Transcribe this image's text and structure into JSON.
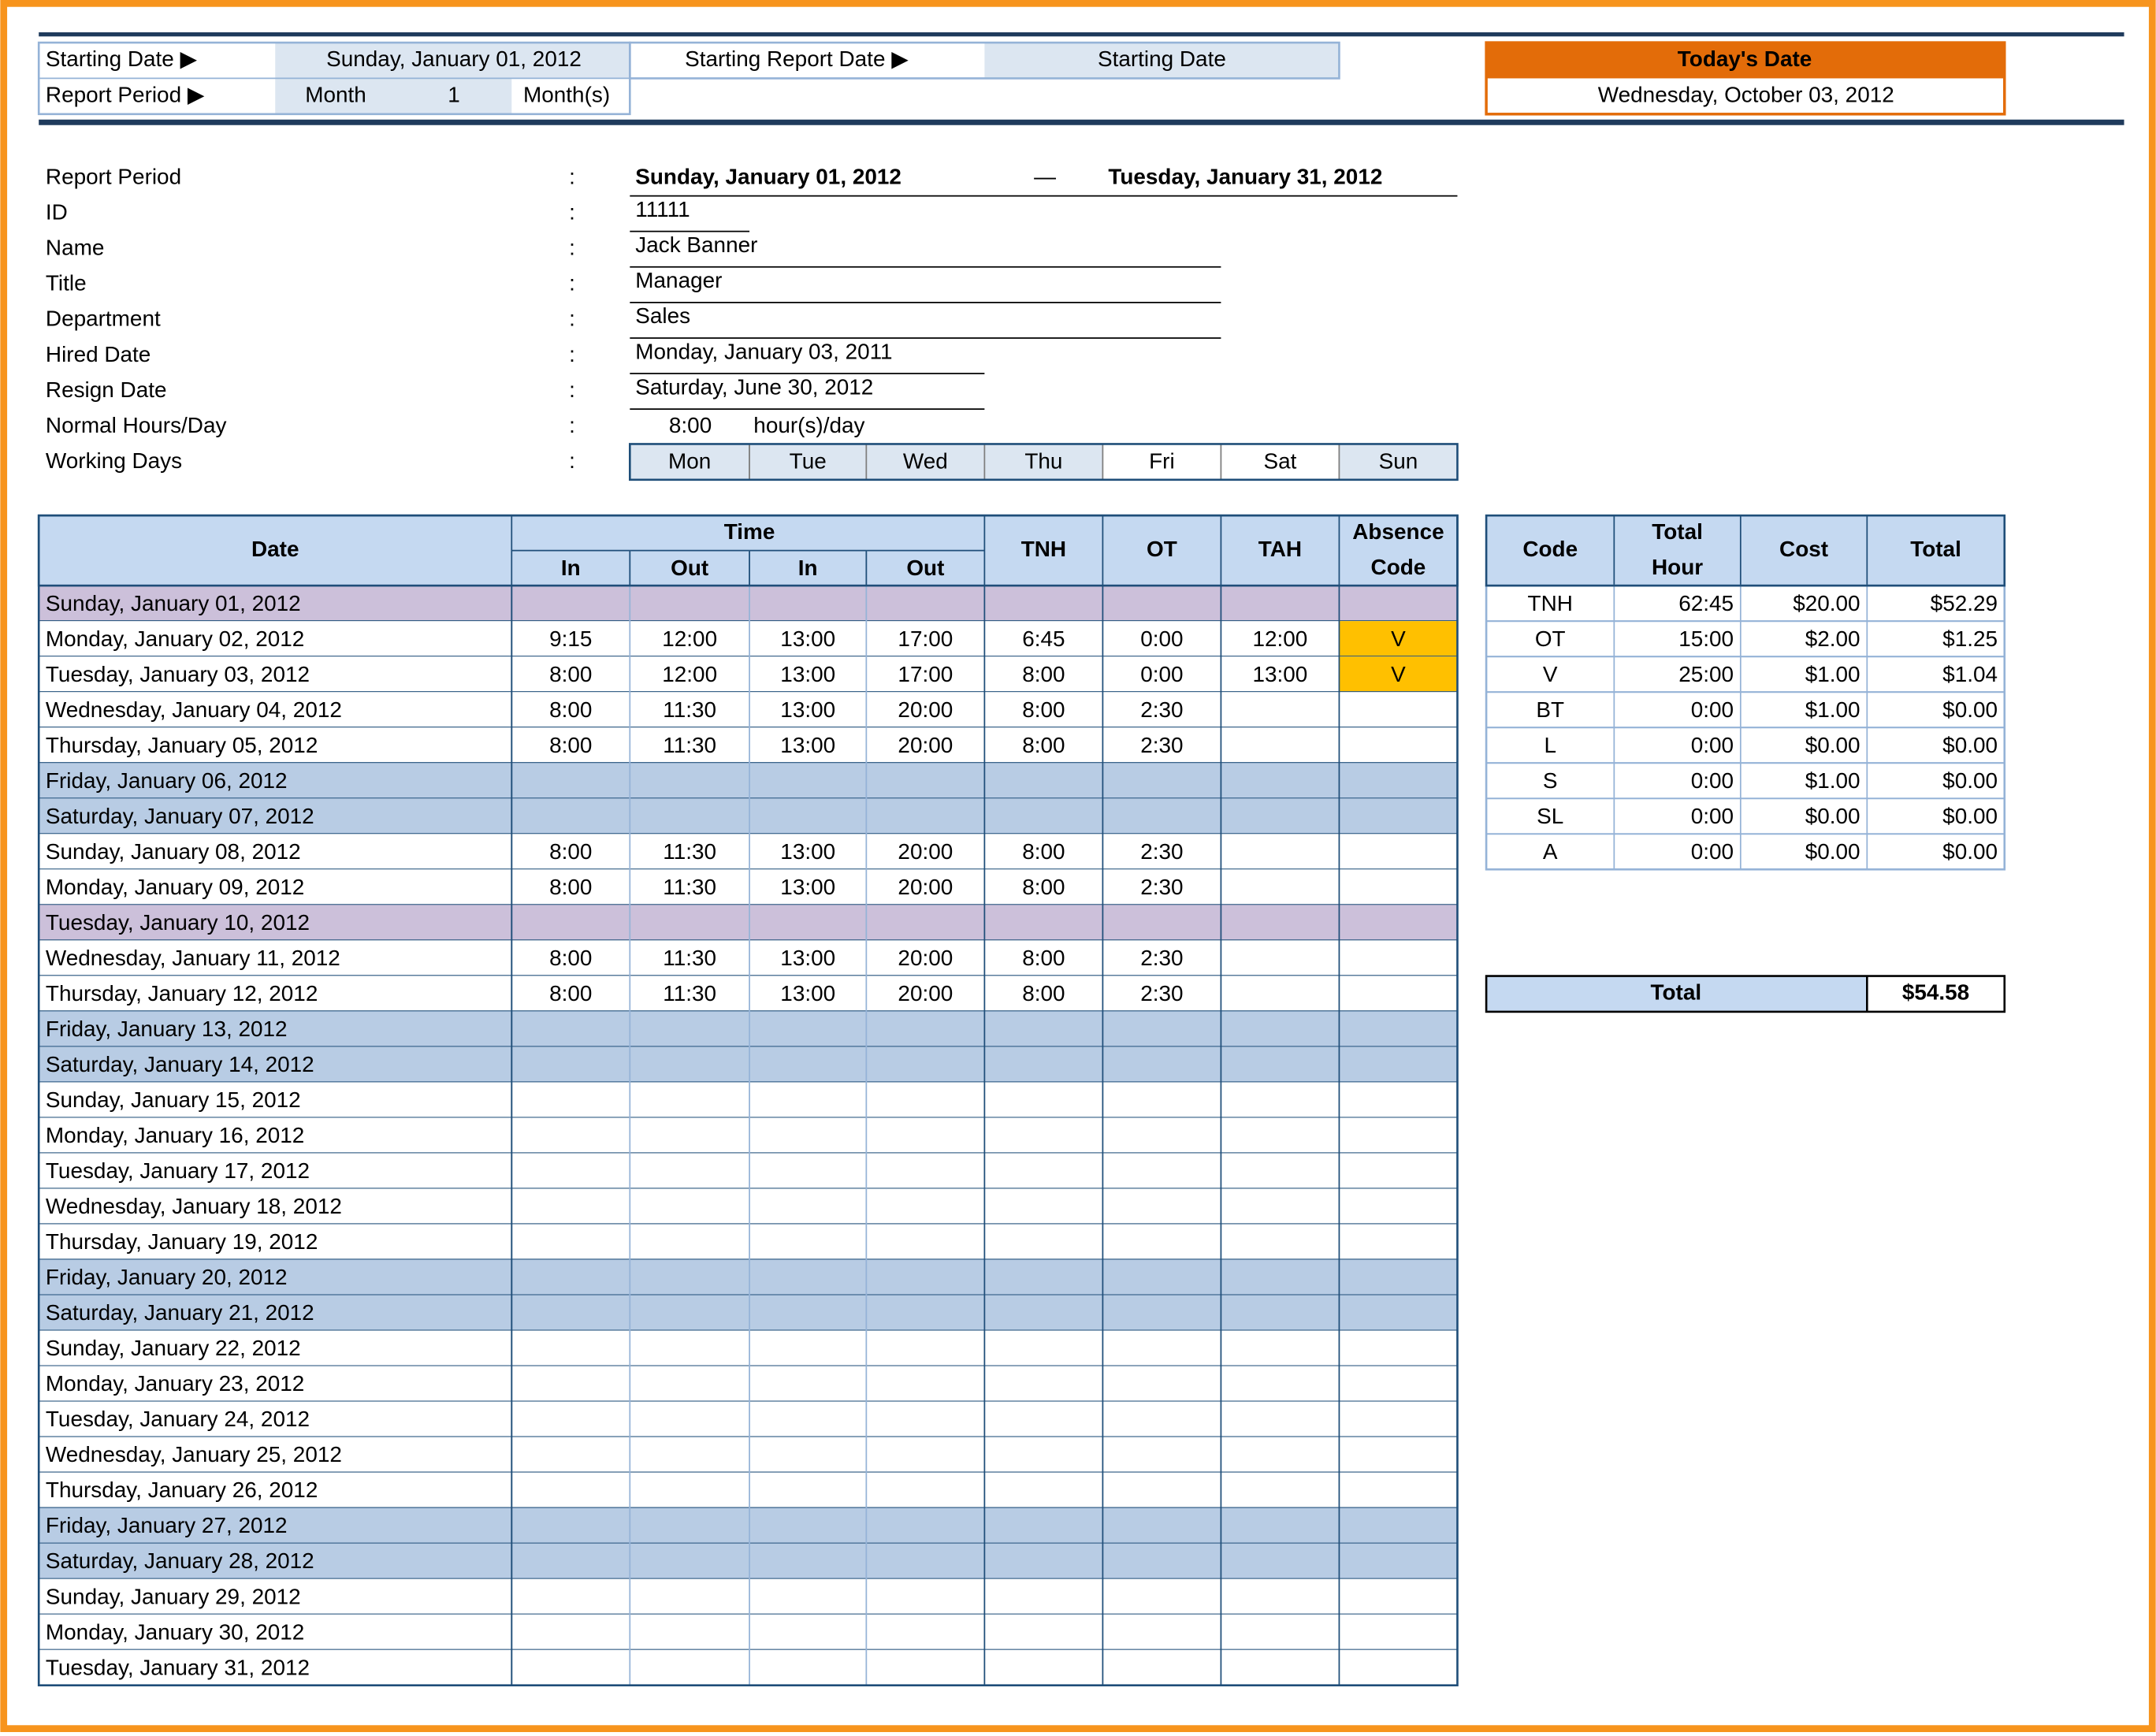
{
  "header": {
    "starting_date_label": "Starting Date ▶",
    "starting_date": "Sunday, January 01, 2012",
    "starting_report_label": "Starting Report Date ▶",
    "starting_report_value": "Starting Date",
    "report_period_label": "Report Period ▶",
    "period_unit": "Month",
    "period_count": "1",
    "period_suffix": "Month(s)",
    "today_label": "Today's Date",
    "today": "Wednesday, October 03, 2012"
  },
  "info": {
    "separator": ":",
    "range_separator": "—",
    "report_period": {
      "label": "Report Period",
      "start": "Sunday, January 01, 2012",
      "end": "Tuesday, January 31, 2012"
    },
    "fields": [
      {
        "label": "ID",
        "value": "11111"
      },
      {
        "label": "Name",
        "value": "Jack Banner"
      },
      {
        "label": "Title",
        "value": "Manager"
      },
      {
        "label": "Department",
        "value": "Sales"
      },
      {
        "label": "Hired Date",
        "value": "Monday, January 03, 2011"
      },
      {
        "label": "Resign Date",
        "value": "Saturday, June 30, 2012"
      }
    ],
    "normal_hours": {
      "label": "Normal Hours/Day",
      "value": "8:00",
      "unit": "hour(s)/day"
    },
    "working_days": {
      "label": "Working Days",
      "days": [
        {
          "name": "Mon",
          "active": true
        },
        {
          "name": "Tue",
          "active": true
        },
        {
          "name": "Wed",
          "active": true
        },
        {
          "name": "Thu",
          "active": true
        },
        {
          "name": "Fri",
          "active": false
        },
        {
          "name": "Sat",
          "active": false
        },
        {
          "name": "Sun",
          "active": true
        }
      ]
    }
  },
  "table": {
    "headers": {
      "date": "Date",
      "time": "Time",
      "time_cols": [
        "In",
        "Out",
        "In",
        "Out"
      ],
      "tnh": "TNH",
      "ot": "OT",
      "tah": "TAH",
      "code": "Absence Code"
    },
    "rows": [
      {
        "cells": [
          "Sunday, January 01, 2012",
          null,
          null,
          null,
          null,
          null,
          null,
          null,
          null
        ],
        "color": "#ccc0da"
      },
      {
        "cells": [
          "Monday, January 02, 2012",
          "9:15",
          "12:00",
          "13:00",
          "17:00",
          "6:45",
          "0:00",
          "12:00",
          "V"
        ],
        "color": "#ffffff",
        "code_color": "#ffc000"
      },
      {
        "cells": [
          "Tuesday, January 03, 2012",
          "8:00",
          "12:00",
          "13:00",
          "17:00",
          "8:00",
          "0:00",
          "13:00",
          "V"
        ],
        "color": "#ffffff",
        "code_color": "#ffc000"
      },
      {
        "cells": [
          "Wednesday, January 04, 2012",
          "8:00",
          "11:30",
          "13:00",
          "20:00",
          "8:00",
          "2:30",
          null,
          null
        ],
        "color": "#ffffff"
      },
      {
        "cells": [
          "Thursday, January 05, 2012",
          "8:00",
          "11:30",
          "13:00",
          "20:00",
          "8:00",
          "2:30",
          null,
          null
        ],
        "color": "#ffffff"
      },
      {
        "cells": [
          "Friday, January 06, 2012",
          null,
          null,
          null,
          null,
          null,
          null,
          null,
          null
        ],
        "color": "#b8cce4"
      },
      {
        "cells": [
          "Saturday, January 07, 2012",
          null,
          null,
          null,
          null,
          null,
          null,
          null,
          null
        ],
        "color": "#b8cce4"
      },
      {
        "cells": [
          "Sunday, January 08, 2012",
          "8:00",
          "11:30",
          "13:00",
          "20:00",
          "8:00",
          "2:30",
          null,
          null
        ],
        "color": "#ffffff"
      },
      {
        "cells": [
          "Monday, January 09, 2012",
          "8:00",
          "11:30",
          "13:00",
          "20:00",
          "8:00",
          "2:30",
          null,
          null
        ],
        "color": "#ffffff"
      },
      {
        "cells": [
          "Tuesday, January 10, 2012",
          null,
          null,
          null,
          null,
          null,
          null,
          null,
          null
        ],
        "color": "#ccc0da"
      },
      {
        "cells": [
          "Wednesday, January 11, 2012",
          "8:00",
          "11:30",
          "13:00",
          "20:00",
          "8:00",
          "2:30",
          null,
          null
        ],
        "color": "#ffffff"
      },
      {
        "cells": [
          "Thursday, January 12, 2012",
          "8:00",
          "11:30",
          "13:00",
          "20:00",
          "8:00",
          "2:30",
          null,
          null
        ],
        "color": "#ffffff"
      },
      {
        "cells": [
          "Friday, January 13, 2012",
          null,
          null,
          null,
          null,
          null,
          null,
          null,
          null
        ],
        "color": "#b8cce4"
      },
      {
        "cells": [
          "Saturday, January 14, 2012",
          null,
          null,
          null,
          null,
          null,
          null,
          null,
          null
        ],
        "color": "#b8cce4"
      },
      {
        "cells": [
          "Sunday, January 15, 2012",
          null,
          null,
          null,
          null,
          null,
          null,
          null,
          null
        ],
        "color": "#ffffff"
      },
      {
        "cells": [
          "Monday, January 16, 2012",
          null,
          null,
          null,
          null,
          null,
          null,
          null,
          null
        ],
        "color": "#ffffff"
      },
      {
        "cells": [
          "Tuesday, January 17, 2012",
          null,
          null,
          null,
          null,
          null,
          null,
          null,
          null
        ],
        "color": "#ffffff"
      },
      {
        "cells": [
          "Wednesday, January 18, 2012",
          null,
          null,
          null,
          null,
          null,
          null,
          null,
          null
        ],
        "color": "#ffffff"
      },
      {
        "cells": [
          "Thursday, January 19, 2012",
          null,
          null,
          null,
          null,
          null,
          null,
          null,
          null
        ],
        "color": "#ffffff"
      },
      {
        "cells": [
          "Friday, January 20, 2012",
          null,
          null,
          null,
          null,
          null,
          null,
          null,
          null
        ],
        "color": "#b8cce4"
      },
      {
        "cells": [
          "Saturday, January 21, 2012",
          null,
          null,
          null,
          null,
          null,
          null,
          null,
          null
        ],
        "color": "#b8cce4"
      },
      {
        "cells": [
          "Sunday, January 22, 2012",
          null,
          null,
          null,
          null,
          null,
          null,
          null,
          null
        ],
        "color": "#ffffff"
      },
      {
        "cells": [
          "Monday, January 23, 2012",
          null,
          null,
          null,
          null,
          null,
          null,
          null,
          null
        ],
        "color": "#ffffff"
      },
      {
        "cells": [
          "Tuesday, January 24, 2012",
          null,
          null,
          null,
          null,
          null,
          null,
          null,
          null
        ],
        "color": "#ffffff"
      },
      {
        "cells": [
          "Wednesday, January 25, 2012",
          null,
          null,
          null,
          null,
          null,
          null,
          null,
          null
        ],
        "color": "#ffffff"
      },
      {
        "cells": [
          "Thursday, January 26, 2012",
          null,
          null,
          null,
          null,
          null,
          null,
          null,
          null
        ],
        "color": "#ffffff"
      },
      {
        "cells": [
          "Friday, January 27, 2012",
          null,
          null,
          null,
          null,
          null,
          null,
          null,
          null
        ],
        "color": "#b8cce4"
      },
      {
        "cells": [
          "Saturday, January 28, 2012",
          null,
          null,
          null,
          null,
          null,
          null,
          null,
          null
        ],
        "color": "#b8cce4"
      },
      {
        "cells": [
          "Sunday, January 29, 2012",
          null,
          null,
          null,
          null,
          null,
          null,
          null,
          null
        ],
        "color": "#ffffff"
      },
      {
        "cells": [
          "Monday, January 30, 2012",
          null,
          null,
          null,
          null,
          null,
          null,
          null,
          null
        ],
        "color": "#ffffff"
      },
      {
        "cells": [
          "Tuesday, January 31, 2012",
          null,
          null,
          null,
          null,
          null,
          null,
          null,
          null
        ],
        "color": "#ffffff"
      }
    ]
  },
  "summary": {
    "headers": [
      "Code",
      "Total Hour",
      "Cost",
      "Total"
    ],
    "rows": [
      [
        "TNH",
        "62:45",
        "$20.00",
        "$52.29"
      ],
      [
        "OT",
        "15:00",
        "$2.00",
        "$1.25"
      ],
      [
        "V",
        "25:00",
        "$1.00",
        "$1.04"
      ],
      [
        "BT",
        "0:00",
        "$1.00",
        "$0.00"
      ],
      [
        "L",
        "0:00",
        "$0.00",
        "$0.00"
      ],
      [
        "S",
        "0:00",
        "$1.00",
        "$0.00"
      ],
      [
        "SL",
        "0:00",
        "$0.00",
        "$0.00"
      ],
      [
        "A",
        "0:00",
        "$0.00",
        "$0.00"
      ]
    ],
    "total": {
      "label": "Total",
      "value": "$54.58"
    }
  }
}
